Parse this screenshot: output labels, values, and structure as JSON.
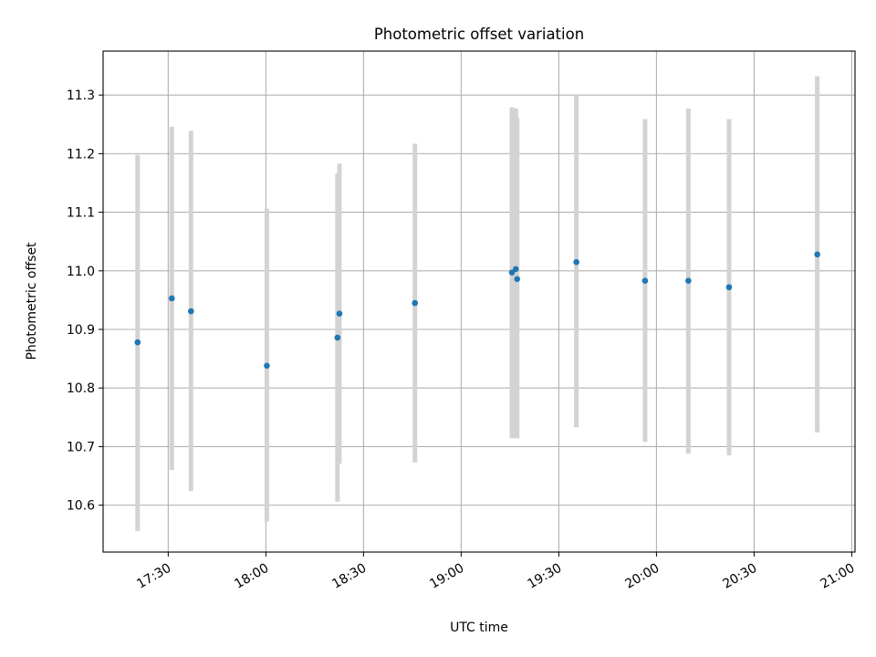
{
  "chart_data": {
    "type": "scatter",
    "title": "Photometric offset variation",
    "xlabel": "UTC time",
    "ylabel": "Photometric offset",
    "x_axis_kind": "time",
    "xlim": [
      "17:10",
      "21:01"
    ],
    "ylim": [
      10.52,
      11.375
    ],
    "grid": true,
    "x_ticks": [
      "17:30",
      "18:00",
      "18:30",
      "19:00",
      "19:30",
      "20:00",
      "20:30",
      "21:00"
    ],
    "y_ticks": [
      10.6,
      10.7,
      10.8,
      10.9,
      11.0,
      11.1,
      11.2,
      11.3
    ],
    "y_tick_labels": [
      "10.6",
      "10.7",
      "10.8",
      "10.9",
      "11.0",
      "11.1",
      "11.2",
      "11.3"
    ],
    "errorbar_color": "#d3d3d3",
    "marker_color": "#1f77b4",
    "points": [
      {
        "x": "17:20.6",
        "y": 10.878,
        "ylo": 10.556,
        "yhi": 11.198
      },
      {
        "x": "17:31.1",
        "y": 10.953,
        "ylo": 10.66,
        "yhi": 11.246
      },
      {
        "x": "17:37.0",
        "y": 10.931,
        "ylo": 10.624,
        "yhi": 11.239
      },
      {
        "x": "18:00.3",
        "y": 10.838,
        "ylo": 10.572,
        "yhi": 11.106
      },
      {
        "x": "18:22.0",
        "y": 10.886,
        "ylo": 10.606,
        "yhi": 11.166
      },
      {
        "x": "18:22.6",
        "y": 10.927,
        "ylo": 10.671,
        "yhi": 11.183
      },
      {
        "x": "18:45.8",
        "y": 10.945,
        "ylo": 10.673,
        "yhi": 11.217
      },
      {
        "x": "19:15.6",
        "y": 10.997,
        "ylo": 10.714,
        "yhi": 11.279
      },
      {
        "x": "19:16.8",
        "y": 11.003,
        "ylo": 10.714,
        "yhi": 11.277
      },
      {
        "x": "19:17.2",
        "y": 10.986,
        "ylo": 10.714,
        "yhi": 11.261
      },
      {
        "x": "19:35.4",
        "y": 11.015,
        "ylo": 10.733,
        "yhi": 11.3
      },
      {
        "x": "19:56.5",
        "y": 10.983,
        "ylo": 10.708,
        "yhi": 11.259
      },
      {
        "x": "20:09.8",
        "y": 10.983,
        "ylo": 10.688,
        "yhi": 11.277
      },
      {
        "x": "20:22.3",
        "y": 10.972,
        "ylo": 10.685,
        "yhi": 11.259
      },
      {
        "x": "20:49.4",
        "y": 11.028,
        "ylo": 10.724,
        "yhi": 11.332
      }
    ]
  }
}
